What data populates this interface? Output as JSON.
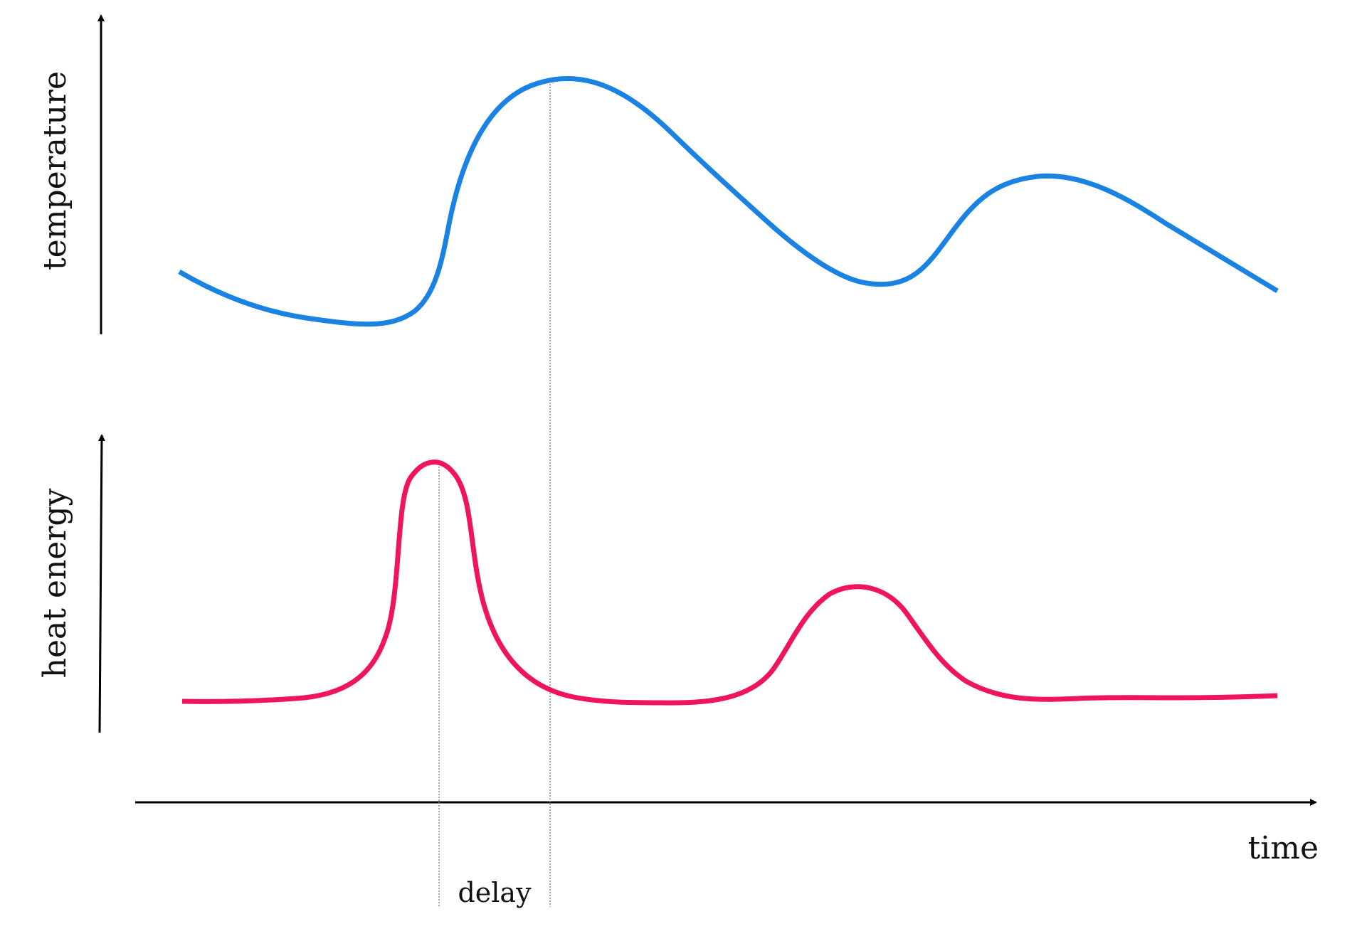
{
  "labels": {
    "y_top": "temperature",
    "y_bottom": "heat energy",
    "x": "time",
    "delay": "delay"
  },
  "colors": {
    "temperature_curve": "#1a82e2",
    "heat_curve": "#f0145a",
    "axis": "#000000",
    "guide": "#8a8a8a"
  }
}
